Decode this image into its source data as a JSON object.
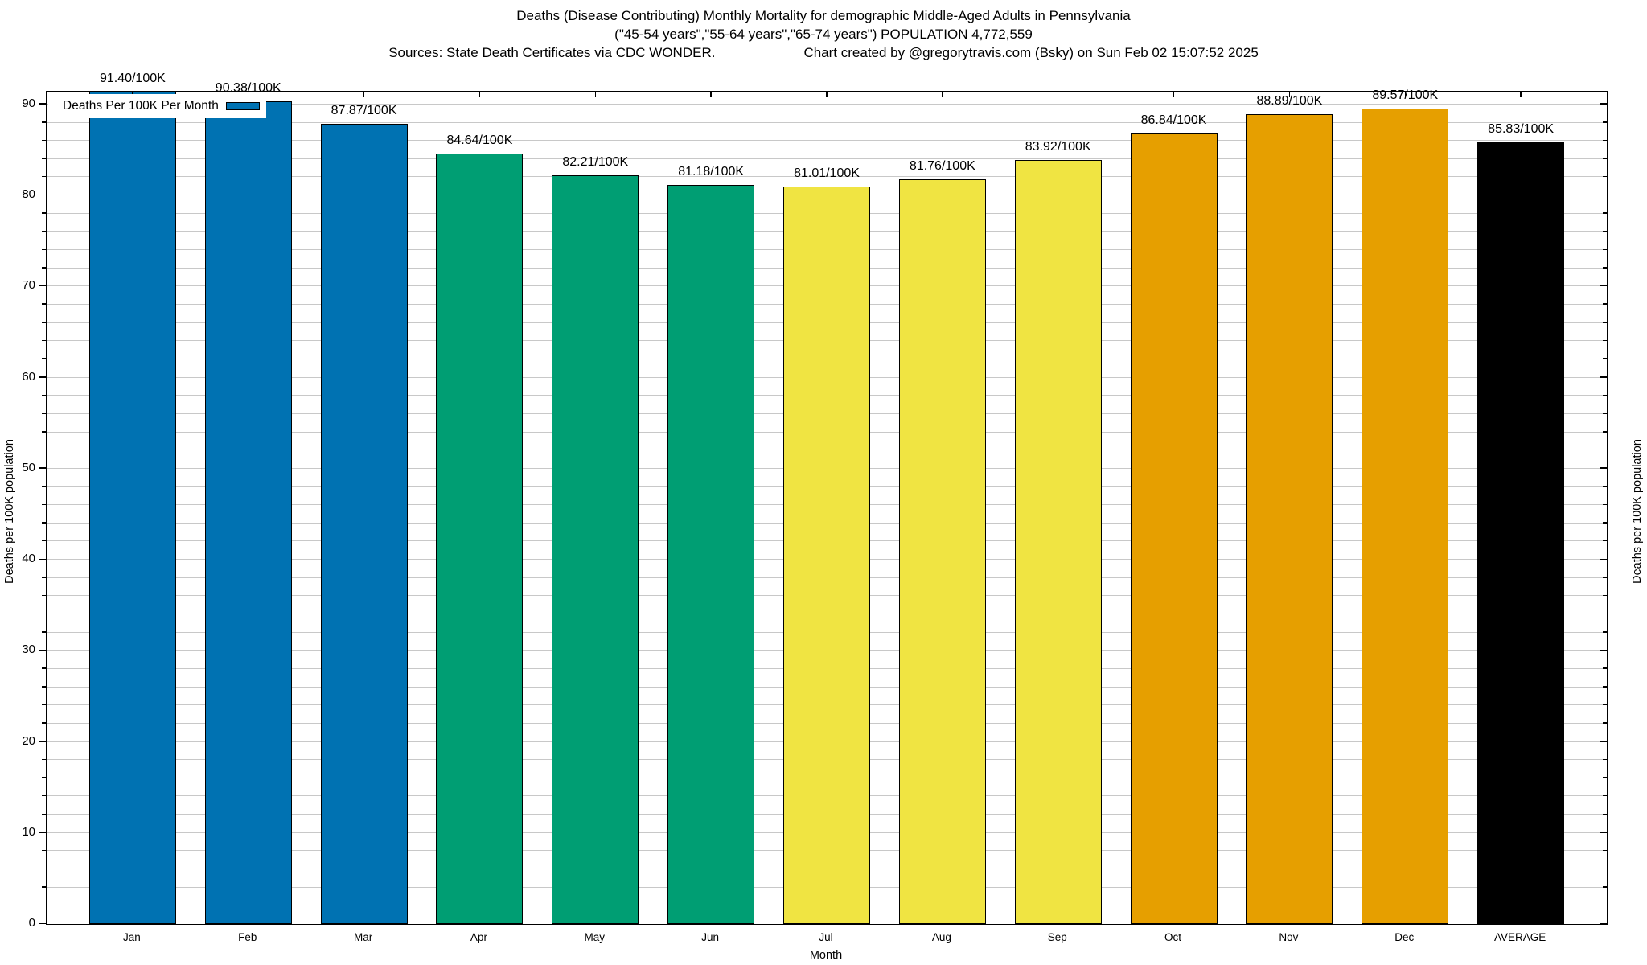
{
  "title": {
    "line1": "Deaths (Disease Contributing) Monthly Mortality for demographic Middle-Aged Adults in Pennsylvania",
    "line2": "(\"45-54 years\",\"55-64 years\",\"65-74 years\") POPULATION 4,772,559",
    "line3_left": "Sources: State Death Certificates via CDC WONDER.",
    "line3_right": "Chart created by @gregorytravis.com (Bsky) on Sun Feb 02 15:07:52 2025"
  },
  "legend": {
    "label": "Deaths Per 100K Per Month",
    "swatch_color": "#0072B2"
  },
  "axes": {
    "x_label": "Month",
    "y_left_label": "Deaths per 100K population",
    "y_right_label": "Deaths per 100K population",
    "y_ticks": [
      0,
      10,
      20,
      30,
      40,
      50,
      60,
      70,
      80,
      90
    ],
    "y_minor_step": 2,
    "y_max": 91.4
  },
  "colors": {
    "blue": "#0072B2",
    "green": "#009E73",
    "yellow": "#F0E442",
    "orange": "#E69F00",
    "black": "#000000",
    "grid": "#c8c8c8"
  },
  "chart_data": {
    "type": "bar",
    "title": "Deaths (Disease Contributing) Monthly Mortality for demographic Middle-Aged Adults in Pennsylvania",
    "subtitle": "(\"45-54 years\",\"55-64 years\",\"65-74 years\") POPULATION 4,772,559",
    "categories": [
      "Jan",
      "Feb",
      "Mar",
      "Apr",
      "May",
      "Jun",
      "Jul",
      "Aug",
      "Sep",
      "Oct",
      "Nov",
      "Dec",
      "AVERAGE"
    ],
    "values": [
      91.4,
      90.38,
      87.87,
      84.64,
      82.21,
      81.18,
      81.01,
      81.76,
      83.92,
      86.84,
      88.89,
      89.57,
      85.83
    ],
    "value_labels": [
      "91.40/100K",
      "90.38/100K",
      "87.87/100K",
      "84.64/100K",
      "82.21/100K",
      "81.18/100K",
      "81.01/100K",
      "81.76/100K",
      "83.92/100K",
      "86.84/100K",
      "88.89/100K",
      "89.57/100K",
      "85.83/100K"
    ],
    "bar_colors": [
      "#0072B2",
      "#0072B2",
      "#0072B2",
      "#009E73",
      "#009E73",
      "#009E73",
      "#F0E442",
      "#F0E442",
      "#F0E442",
      "#E69F00",
      "#E69F00",
      "#E69F00",
      "#000000"
    ],
    "xlabel": "Month",
    "ylabel": "Deaths per 100K population",
    "ylim": [
      0,
      91.4
    ],
    "grid": "horizontal minor gridlines every 2 units",
    "legend_position": "top-left inside plot",
    "legend_label": "Deaths Per 100K Per Month"
  }
}
